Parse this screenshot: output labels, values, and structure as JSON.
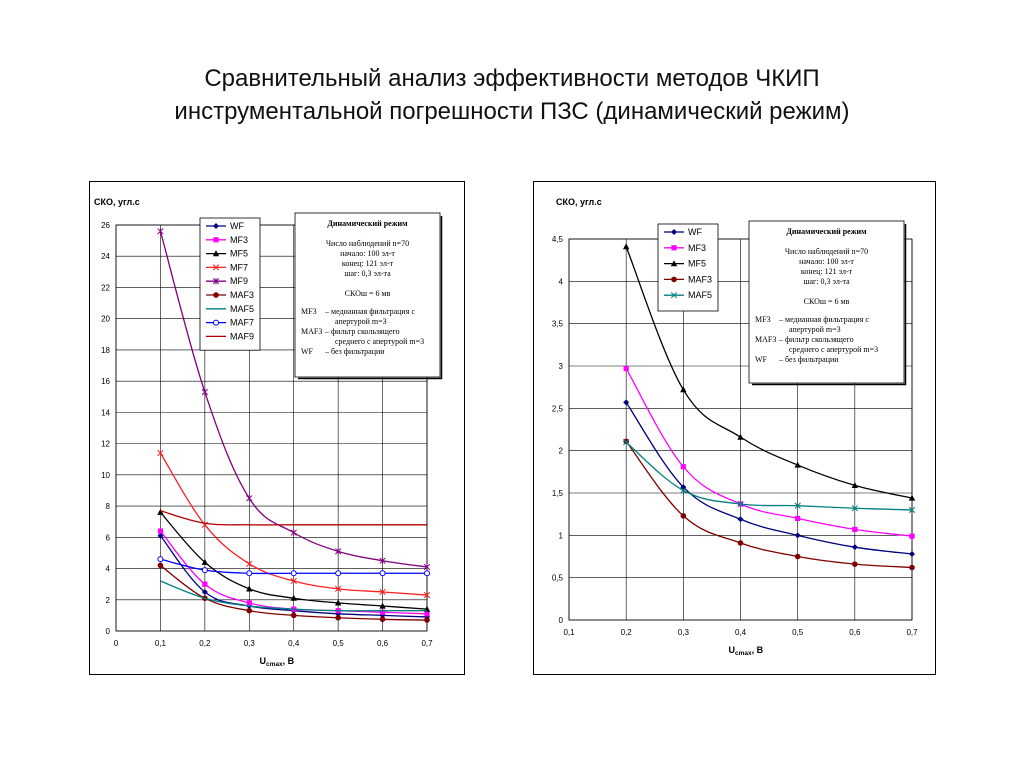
{
  "slide": {
    "title_line1": "Сравнительный анализ эффективности методов ЧКИП",
    "title_line2": "инструментальной погрешности ПЗС (динамический режим)"
  },
  "notes": [
    {
      "heading": "Динамический режим",
      "lines": [
        "Число наблюдений n=70",
        "начало: 100 эл-т",
        "конец: 121 эл-т",
        "шаг: 0,3 эл-та",
        "",
        "СКОш = 6 мв"
      ],
      "definitions": [
        {
          "term": "MF3",
          "text": "–  медианная фильтрация с",
          "cont": "апертурой m=3"
        },
        {
          "term": "MAF3",
          "text": "–  фильтр скользящего",
          "cont": "среднего с апертурой m=3"
        },
        {
          "term": "WF",
          "text": "–  без фильтрации",
          "cont": ""
        }
      ]
    },
    {
      "heading": "Динамический режим",
      "lines": [
        "Число наблюдений n=70",
        "начало: 100 эл-т",
        "конец: 121 эл-т",
        "шаг: 0,3 эл-та",
        "",
        "СКОш = 6 мв"
      ],
      "definitions": [
        {
          "term": "MF3",
          "text": "–  медианная фильтрация с",
          "cont": "апертурой m=3"
        },
        {
          "term": "MAF3",
          "text": "–  фильтр скользящего",
          "cont": "среднего с апертурой m=3"
        },
        {
          "term": "WF",
          "text": "–  без фильтрации",
          "cont": ""
        }
      ]
    }
  ],
  "chart_data": [
    {
      "type": "line",
      "ylabel": "СКО, угл.с",
      "xlabel_main": "U",
      "xlabel_sub": "cmax",
      "xlabel_unit": ", В",
      "xlim": [
        0,
        0.7
      ],
      "ylim": [
        0,
        26
      ],
      "xticks": [
        "0",
        "0,1",
        "0,2",
        "0,3",
        "0,4",
        "0,5",
        "0,6",
        "0,7"
      ],
      "xtick_values": [
        0,
        0.1,
        0.2,
        0.3,
        0.4,
        0.5,
        0.6,
        0.7
      ],
      "yticks": [
        "0",
        "2",
        "4",
        "6",
        "8",
        "10",
        "12",
        "14",
        "16",
        "18",
        "20",
        "22",
        "24",
        "26"
      ],
      "ytick_values": [
        0,
        2,
        4,
        6,
        8,
        10,
        12,
        14,
        16,
        18,
        20,
        22,
        24,
        26
      ],
      "grid": true,
      "legend_position": "top-left",
      "x": [
        0.1,
        0.2,
        0.3,
        0.4,
        0.5,
        0.6,
        0.7
      ],
      "series": [
        {
          "name": "WF",
          "color": "#00007f",
          "marker": "diamond",
          "values": [
            6.1,
            2.5,
            1.6,
            1.3,
            1.1,
            1.0,
            0.9
          ]
        },
        {
          "name": "MF3",
          "color": "#ff00ff",
          "marker": "square",
          "values": [
            6.4,
            3.0,
            1.8,
            1.4,
            1.3,
            1.2,
            1.1
          ]
        },
        {
          "name": "MF5",
          "color": "#000000",
          "marker": "triangle",
          "values": [
            7.6,
            4.4,
            2.7,
            2.1,
            1.8,
            1.6,
            1.4
          ]
        },
        {
          "name": "MF7",
          "color": "#ff2020",
          "marker": "x",
          "values": [
            11.4,
            6.8,
            4.3,
            3.2,
            2.7,
            2.5,
            2.3
          ]
        },
        {
          "name": "MF9",
          "color": "#7f007f",
          "marker": "star",
          "values": [
            25.6,
            15.3,
            8.5,
            6.3,
            5.1,
            4.5,
            4.1
          ]
        },
        {
          "name": "MAF3",
          "color": "#7f0000",
          "marker": "circle",
          "values": [
            4.2,
            2.1,
            1.3,
            1.0,
            0.85,
            0.75,
            0.7
          ]
        },
        {
          "name": "MAF5",
          "color": "#008080",
          "marker": "none",
          "values": [
            3.2,
            2.1,
            1.6,
            1.4,
            1.3,
            1.3,
            1.3
          ]
        },
        {
          "name": "MAF7",
          "color": "#0000ff",
          "marker": "open-circle",
          "values": [
            4.6,
            3.9,
            3.7,
            3.7,
            3.7,
            3.7,
            3.7
          ]
        },
        {
          "name": "MAF9",
          "color": "#b00000",
          "marker": "none",
          "values": [
            7.7,
            6.9,
            6.8,
            6.8,
            6.8,
            6.8,
            6.8
          ]
        }
      ]
    },
    {
      "type": "line",
      "ylabel": "СКО, угл.с",
      "xlabel_main": "U",
      "xlabel_sub": "cmax",
      "xlabel_unit": ", В",
      "xlim": [
        0.1,
        0.7
      ],
      "ylim": [
        0,
        4.5
      ],
      "xticks": [
        "0,1",
        "0,2",
        "0,3",
        "0,4",
        "0,5",
        "0,6",
        "0,7"
      ],
      "xtick_values": [
        0.1,
        0.2,
        0.3,
        0.4,
        0.5,
        0.6,
        0.7
      ],
      "yticks": [
        "0",
        "0,5",
        "1",
        "1,5",
        "2",
        "2,5",
        "3",
        "3,5",
        "4",
        "4,5"
      ],
      "ytick_values": [
        0,
        0.5,
        1,
        1.5,
        2,
        2.5,
        3,
        3.5,
        4,
        4.5
      ],
      "grid": true,
      "legend_position": "top-left",
      "x": [
        0.2,
        0.3,
        0.4,
        0.5,
        0.6,
        0.7
      ],
      "series": [
        {
          "name": "WF",
          "color": "#00007f",
          "marker": "diamond",
          "values": [
            2.57,
            1.57,
            1.19,
            1.0,
            0.86,
            0.78
          ]
        },
        {
          "name": "MF3",
          "color": "#ff00ff",
          "marker": "square",
          "values": [
            2.97,
            1.81,
            1.37,
            1.2,
            1.07,
            0.99
          ]
        },
        {
          "name": "MF5",
          "color": "#000000",
          "marker": "triangle",
          "values": [
            4.41,
            2.72,
            2.16,
            1.83,
            1.59,
            1.44
          ]
        },
        {
          "name": "MAF3",
          "color": "#7f0000",
          "marker": "circle",
          "values": [
            2.11,
            1.23,
            0.91,
            0.75,
            0.66,
            0.62
          ]
        },
        {
          "name": "MAF5",
          "color": "#008080",
          "marker": "x",
          "values": [
            2.1,
            1.53,
            1.37,
            1.35,
            1.32,
            1.3
          ]
        }
      ]
    }
  ]
}
